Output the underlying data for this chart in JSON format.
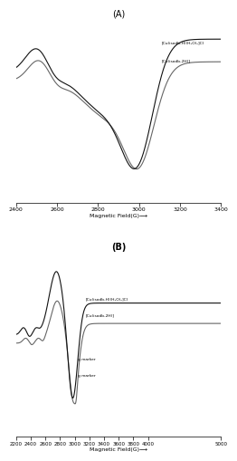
{
  "title_A": "(A)",
  "title_B": "(B)",
  "xlabel": "Magnetic Field(G)⟶",
  "xlim_A": [
    2400,
    3400
  ],
  "xlim_B": [
    2200,
    5000
  ],
  "xticks_A": [
    2400,
    2600,
    2800,
    3000,
    3200,
    3400
  ],
  "xticks_B": [
    2200,
    2400,
    2600,
    2800,
    3000,
    3200,
    3400,
    3600,
    3800,
    4000,
    5000
  ],
  "label1": "[Cu(isodb-H)(H₂O)₂]Cl",
  "label2": "[Cu(isodb-2H)]",
  "g_marker1": "g marker",
  "g_marker2": "g marker",
  "line_color1": "#111111",
  "line_color2": "#666666",
  "lw": 0.8
}
